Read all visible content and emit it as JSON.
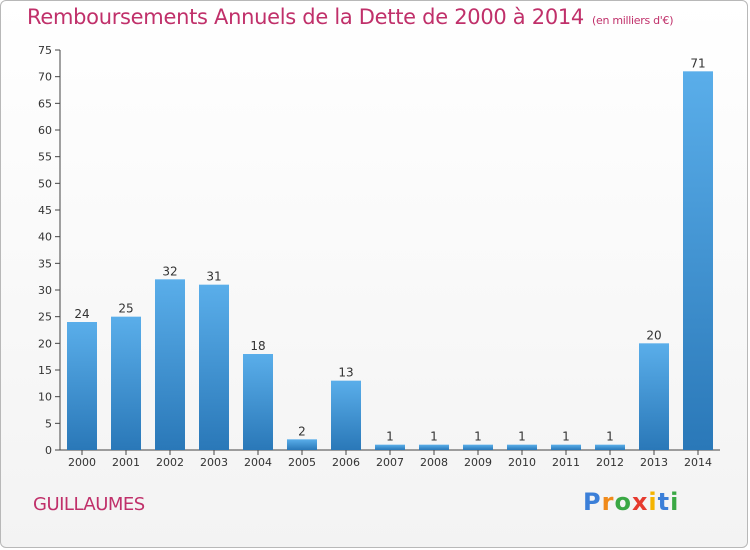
{
  "header": {
    "title": "Remboursements Annuels de la Dette de 2000 à 2014",
    "subtitle": "(en milliers d'€)"
  },
  "footer": {
    "place": "GUILLAUMES",
    "logo": "Proxiti"
  },
  "colors": {
    "title": "#c0306a",
    "bar_light": "#5aaeea",
    "bar_dark": "#2a78b8"
  },
  "chart_data": {
    "type": "bar",
    "title": "Remboursements Annuels de la Dette de 2000 à 2014",
    "subtitle": "(en milliers d'€)",
    "categories": [
      "2000",
      "2001",
      "2002",
      "2003",
      "2004",
      "2005",
      "2006",
      "2007",
      "2008",
      "2009",
      "2010",
      "2011",
      "2012",
      "2013",
      "2014"
    ],
    "values": [
      24,
      25,
      32,
      31,
      18,
      2,
      13,
      1,
      1,
      1,
      1,
      1,
      1,
      20,
      71
    ],
    "ylim": [
      0,
      75
    ],
    "yticks": [
      0,
      5,
      10,
      15,
      20,
      25,
      30,
      35,
      40,
      45,
      50,
      55,
      60,
      65,
      70,
      75
    ],
    "grid": false,
    "data_labels": true
  }
}
